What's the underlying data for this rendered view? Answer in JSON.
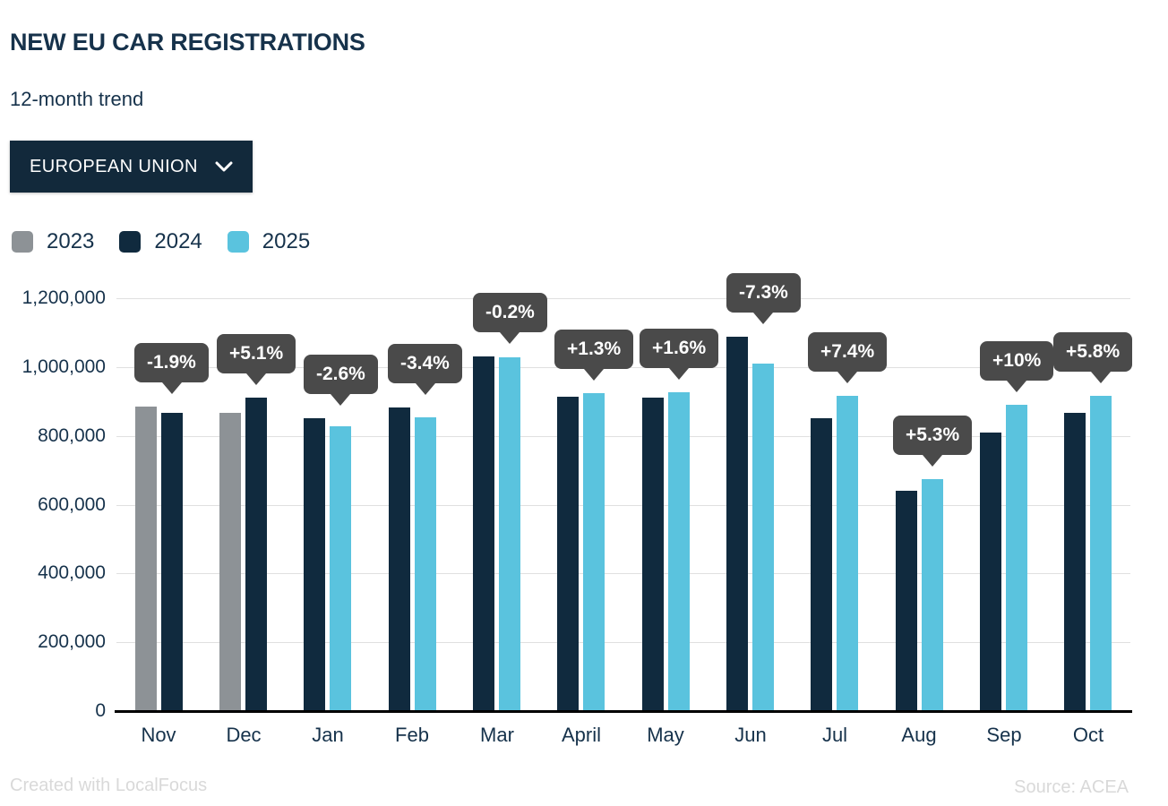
{
  "header": {
    "title": "NEW EU CAR REGISTRATIONS",
    "subtitle": "12-month trend"
  },
  "region_selector": {
    "label": "EUROPEAN UNION",
    "chevron_icon": "chevron-down"
  },
  "legend": {
    "items": [
      {
        "label": "2023",
        "color": "#8d9296"
      },
      {
        "label": "2024",
        "color": "#102a3e"
      },
      {
        "label": "2025",
        "color": "#5ac3de"
      }
    ]
  },
  "colors": {
    "navy": "#102a3e",
    "blue": "#5ac3de",
    "gray": "#8d9296",
    "tooltip_bg": "#4a4a4a",
    "text": "#16324b",
    "gridline": "#e0e0e0",
    "axis": "#000000"
  },
  "chart_data": {
    "type": "bar",
    "title": "NEW EU CAR REGISTRATIONS",
    "subtitle": "12-month trend",
    "categories": [
      "Nov",
      "Dec",
      "Jan",
      "Feb",
      "Mar",
      "April",
      "May",
      "Jun",
      "Jul",
      "Aug",
      "Sep",
      "Oct"
    ],
    "series": [
      {
        "name": "2023",
        "color": "#8d9296",
        "values": [
          884000,
          866000,
          null,
          null,
          null,
          null,
          null,
          null,
          null,
          null,
          null,
          null
        ]
      },
      {
        "name": "2024",
        "color": "#102a3e",
        "values": [
          867000,
          910000,
          851000,
          883000,
          1031000,
          913000,
          911000,
          1089000,
          852000,
          640000,
          810000,
          866000
        ]
      },
      {
        "name": "2025",
        "color": "#5ac3de",
        "values": [
          null,
          null,
          829000,
          853000,
          1029000,
          925000,
          926000,
          1010000,
          915000,
          674000,
          891000,
          916000
        ]
      }
    ],
    "annotations": [
      "-1.9%",
      "+5.1%",
      "-2.6%",
      "-3.4%",
      "-0.2%",
      "+1.3%",
      "+1.6%",
      "-7.3%",
      "+7.4%",
      "+5.3%",
      "+10%",
      "+5.8%"
    ],
    "ylabel": "",
    "xlabel": "",
    "ylim": [
      0,
      1200000
    ],
    "yticks": [
      {
        "label": "1,200,000",
        "value": 1200000
      },
      {
        "label": "1,000,000",
        "value": 1000000
      },
      {
        "label": "800,000",
        "value": 800000
      },
      {
        "label": "600,000",
        "value": 600000
      },
      {
        "label": "400,000",
        "value": 400000
      },
      {
        "label": "200,000",
        "value": 200000
      },
      {
        "label": "0",
        "value": 0
      }
    ],
    "grid": true,
    "legend_position": "top-left"
  },
  "footer": {
    "left": "Created with LocalFocus",
    "right": "Source: ACEA"
  }
}
